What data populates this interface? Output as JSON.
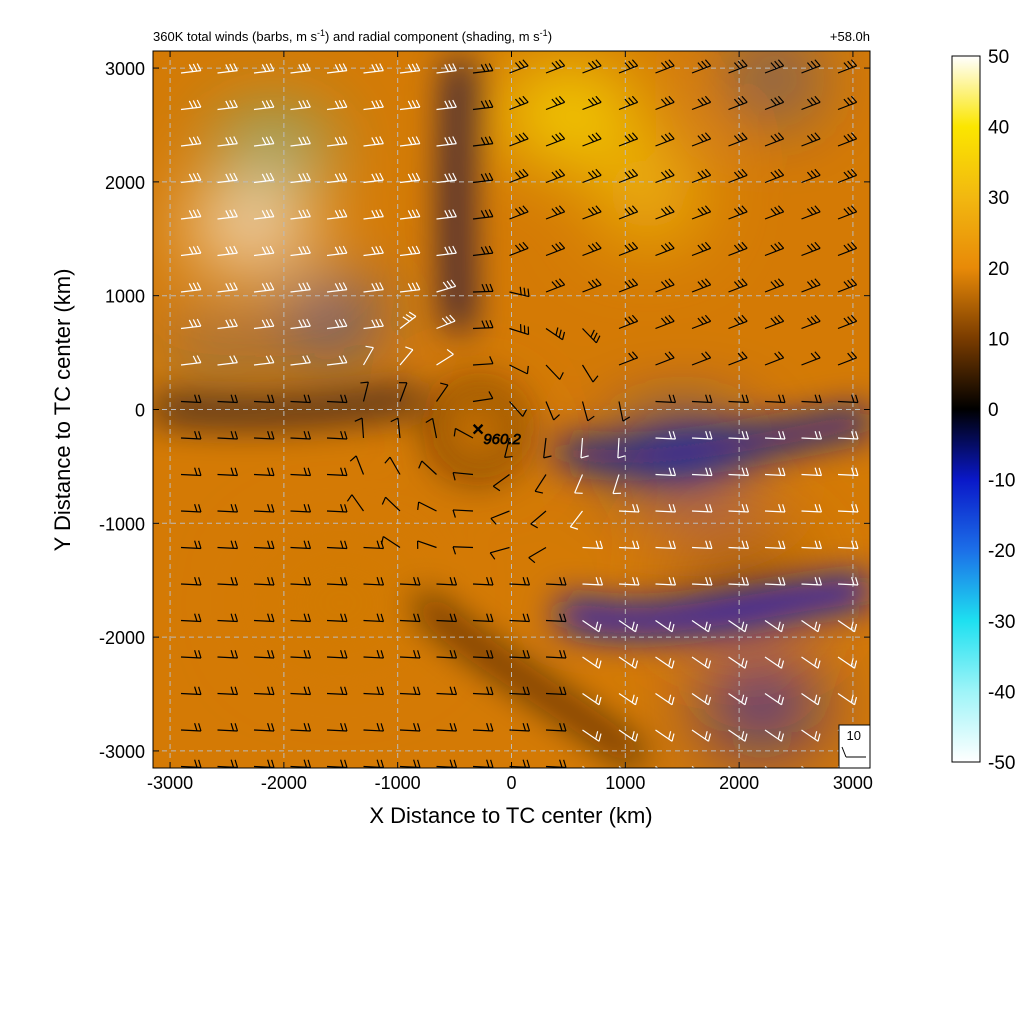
{
  "chart_data": {
    "type": "heatmap",
    "title": {
      "main": "360K total winds (barbs, m s",
      "sup1": "-1",
      "mid": ") and radial component (shading, m s",
      "sup2": "-1",
      "end": ")"
    },
    "time_label": "+58.0h",
    "xlabel": "X Distance to TC center (km)",
    "ylabel": "Y Distance to TC center (km)",
    "xlim": [
      -3150,
      3150
    ],
    "ylim": [
      -3150,
      3150
    ],
    "x_ticks": [
      -3000,
      -2000,
      -1000,
      0,
      1000,
      2000,
      3000
    ],
    "y_ticks": [
      -3000,
      -2000,
      -1000,
      0,
      1000,
      2000,
      3000
    ],
    "x_tick_labels": [
      "-3000",
      "-2000",
      "-1000",
      "0",
      "1000",
      "2000",
      "3000"
    ],
    "y_tick_labels": [
      "-3000",
      "-2000",
      "-1000",
      "0",
      "1000",
      "2000",
      "3000"
    ],
    "grid": true,
    "colorbar": {
      "range": [
        -50,
        50
      ],
      "ticks": [
        50,
        40,
        30,
        20,
        10,
        0,
        -10,
        -20,
        -30,
        -40,
        -50
      ],
      "tick_labels": [
        "50",
        "40",
        "30",
        "20",
        "10",
        "0",
        "-10",
        "-20",
        "-30",
        "-40",
        "-50"
      ],
      "stops": [
        {
          "v": -50,
          "color": "#ffffff"
        },
        {
          "v": -40,
          "color": "#9ef4f8"
        },
        {
          "v": -30,
          "color": "#1ee0f0"
        },
        {
          "v": -20,
          "color": "#1c6fe8"
        },
        {
          "v": -10,
          "color": "#0a18c8"
        },
        {
          "v": 0,
          "color": "#000000"
        },
        {
          "v": 10,
          "color": "#7a3c00"
        },
        {
          "v": 20,
          "color": "#e88a08"
        },
        {
          "v": 30,
          "color": "#f2b810"
        },
        {
          "v": 40,
          "color": "#fbe600"
        },
        {
          "v": 50,
          "color": "#ffffff"
        }
      ]
    },
    "center_marker": {
      "x": -300,
      "y": -180,
      "label": "960.2"
    },
    "barb_legend": {
      "label": "10"
    },
    "radial_wind_regions": [
      {
        "x": -2300,
        "y": 1600,
        "value": -50
      },
      {
        "x": -2100,
        "y": 2300,
        "value": -32
      },
      {
        "x": -1600,
        "y": 800,
        "value": -16
      },
      {
        "x": -2600,
        "y": 600,
        "value": -18
      },
      {
        "x": 500,
        "y": 2600,
        "value": 38
      },
      {
        "x": 1200,
        "y": 1900,
        "value": 32
      },
      {
        "x": 2300,
        "y": 2900,
        "value": -14
      },
      {
        "x": 1500,
        "y": -400,
        "value": -12
      },
      {
        "x": 2200,
        "y": -2600,
        "value": -10
      },
      {
        "x": -1500,
        "y": -1700,
        "value": 18
      },
      {
        "x": 2000,
        "y": -1500,
        "value": 14
      },
      {
        "x": -300,
        "y": -200,
        "value": 15
      }
    ]
  }
}
